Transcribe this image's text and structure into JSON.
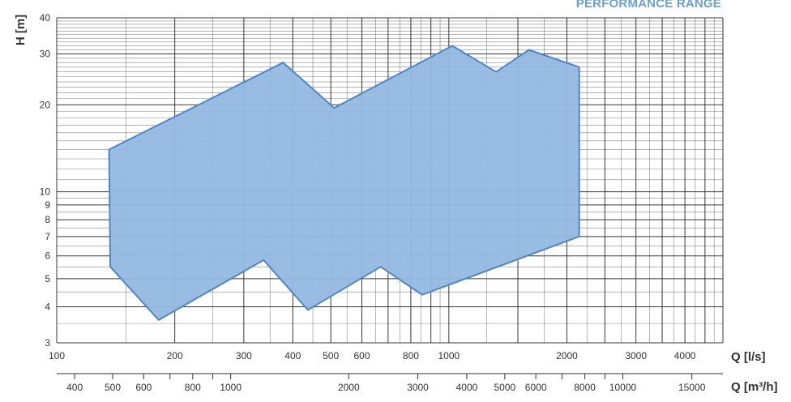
{
  "chart_data": {
    "type": "area",
    "title": "PERFORMANCE RANGE",
    "ylabel": "H [m]",
    "xlabel": "Q [l/s]",
    "xlabel2": "Q [m³/h]",
    "xscale": "log",
    "yscale": "log",
    "xlim": [
      100,
      5000
    ],
    "ylim": [
      3,
      40
    ],
    "grid": true,
    "fill_color": "#93b9e0",
    "line_color": "#4d88c4",
    "grid_color": "#222222",
    "y_ticks": [
      3,
      4,
      5,
      6,
      7,
      8,
      9,
      10,
      20,
      30,
      40
    ],
    "y_tick_labels": [
      "3",
      "4",
      "5",
      "6",
      "7",
      "8",
      "9",
      "10",
      "20",
      "30",
      "40"
    ],
    "x_ticks": [
      100,
      200,
      300,
      400,
      500,
      600,
      800,
      1000,
      2000,
      3000,
      4000
    ],
    "x_tick_labels": [
      "100",
      "200",
      "300",
      "400",
      "500",
      "600",
      "800",
      "1000",
      "2000",
      "3000",
      "4000"
    ],
    "x2_ticks": [
      400,
      500,
      600,
      800,
      1000,
      2000,
      3000,
      4000,
      5000,
      6000,
      8000,
      10000,
      15000
    ],
    "x2_tick_labels": [
      "400",
      "500",
      "600",
      "800",
      "1000",
      "2000",
      "3000",
      "4000",
      "5000",
      "6000",
      "8000",
      "10000",
      "15000"
    ],
    "series": [
      {
        "points": [
          [
            136,
            14
          ],
          [
            378,
            28
          ],
          [
            510,
            19.5
          ],
          [
            1020,
            32
          ],
          [
            1320,
            26
          ],
          [
            1600,
            31
          ],
          [
            2150,
            27
          ],
          [
            2150,
            7
          ],
          [
            855,
            4.4
          ],
          [
            670,
            5.5
          ],
          [
            437,
            3.9
          ],
          [
            337,
            5.8
          ],
          [
            182,
            3.6
          ],
          [
            137,
            5.5
          ]
        ]
      }
    ]
  }
}
